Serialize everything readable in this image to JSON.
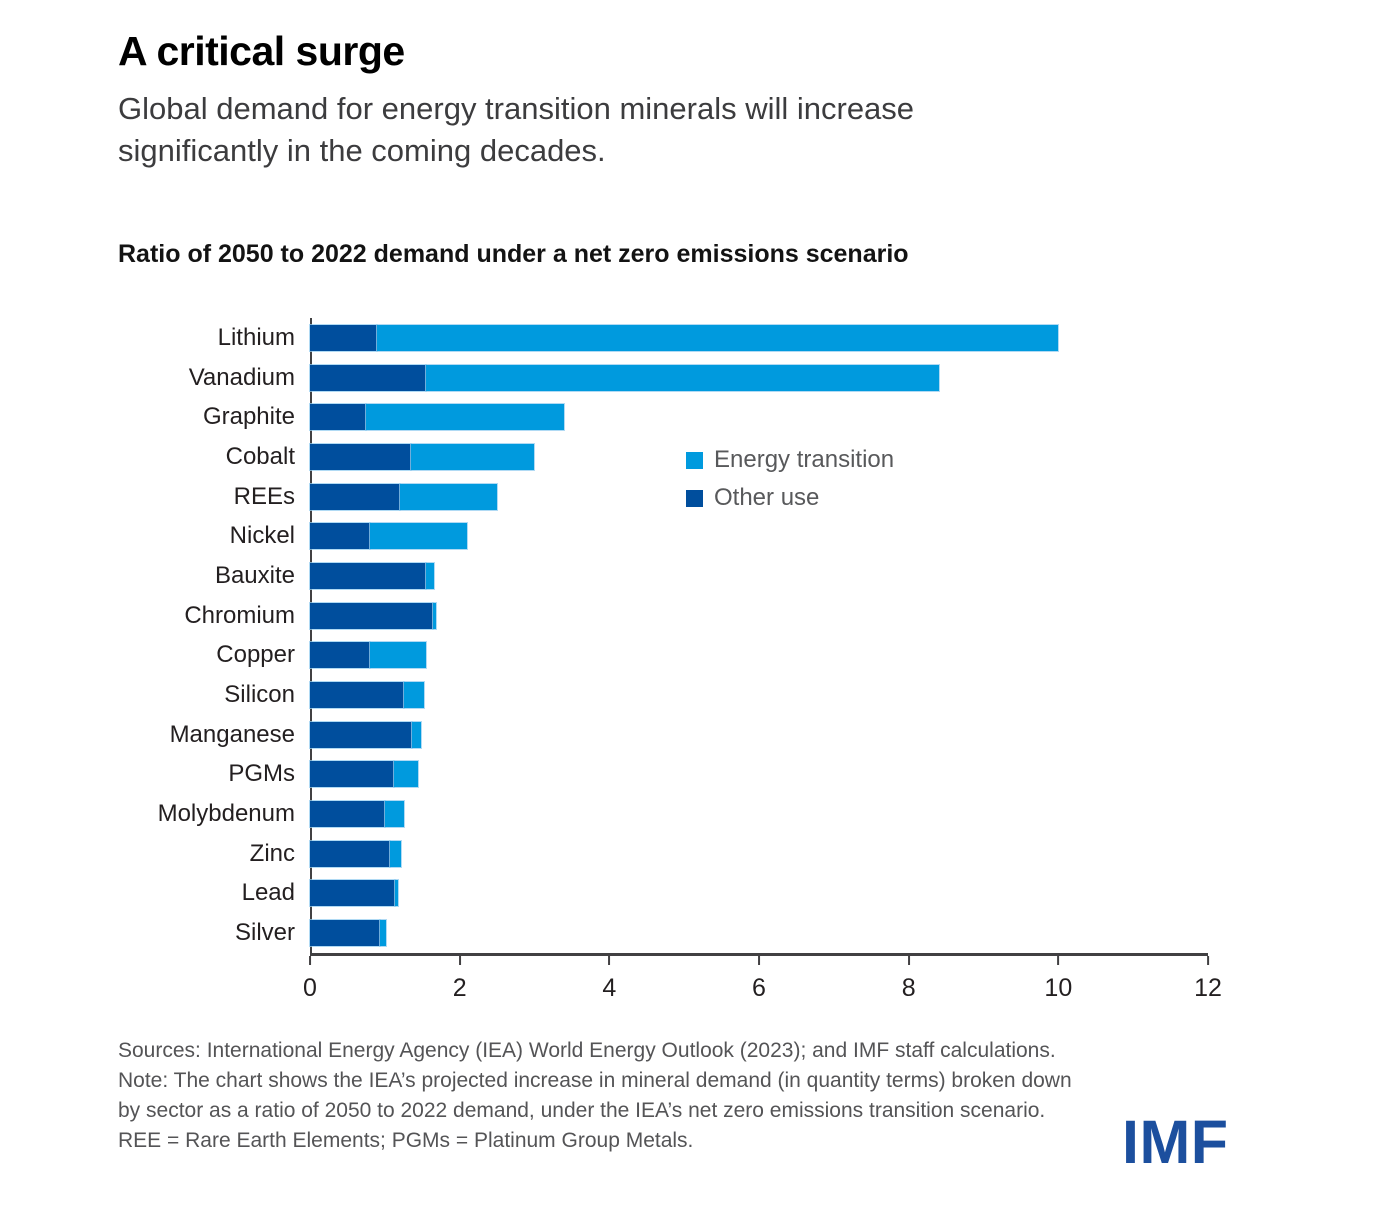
{
  "header": {
    "title": "A critical surge",
    "subtitle": "Global demand for energy transition minerals will increase significantly in the coming decades."
  },
  "chart_data": {
    "type": "bar",
    "orientation": "horizontal",
    "stacked": true,
    "title": "Ratio of 2050 to 2022 demand under a net zero emissions scenario",
    "xlabel": "",
    "ylabel": "",
    "categories": [
      "Lithium",
      "Vanadium",
      "Graphite",
      "Cobalt",
      "REEs",
      "Nickel",
      "Bauxite",
      "Chromium",
      "Copper",
      "Silicon",
      "Manganese",
      "PGMs",
      "Molybdenum",
      "Zinc",
      "Lead",
      "Silver"
    ],
    "series": [
      {
        "name": "Energy transition",
        "color": "#009ade",
        "values": [
          9.1,
          6.85,
          2.65,
          1.65,
          1.3,
          1.3,
          0.11,
          0.04,
          0.75,
          0.26,
          0.12,
          0.32,
          0.26,
          0.14,
          0.04,
          0.07
        ]
      },
      {
        "name": "Other use",
        "color": "#004e9d",
        "values": [
          0.9,
          1.55,
          0.75,
          1.35,
          1.2,
          0.8,
          1.55,
          1.65,
          0.8,
          1.26,
          1.36,
          1.12,
          1.0,
          1.07,
          1.13,
          0.94
        ]
      }
    ],
    "stack_order": [
      "Other use",
      "Energy transition"
    ],
    "xlim": [
      0,
      12
    ],
    "xticks": [
      0,
      2,
      4,
      6,
      8,
      10,
      12
    ],
    "grid": false,
    "legend_position": "middle-right"
  },
  "footer": {
    "sources": "Sources: International Energy Agency (IEA) World Energy Outlook (2023); and IMF staff calculations.",
    "note": "Note: The chart shows the IEA’s projected increase in mineral demand (in quantity terms) broken down by sector as a ratio of 2050 to 2022 demand, under the IEA’s net zero emissions transition scenario. REE = Rare Earth Elements; PGMs = Platinum Group Metals.",
    "logo": "IMF"
  }
}
